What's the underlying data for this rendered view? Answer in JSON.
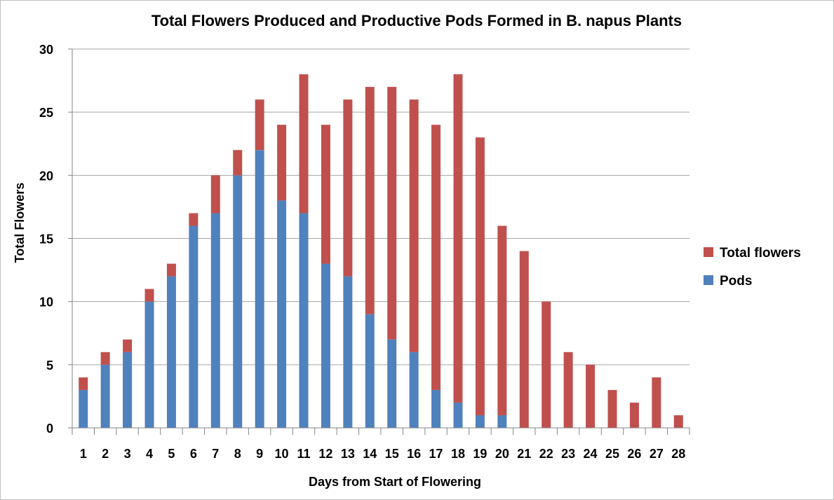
{
  "chart_data": {
    "type": "bar",
    "stacked": true,
    "title": "Total Flowers Produced and Productive Pods Formed in B. napus Plants",
    "xlabel": "Days from Start of Flowering",
    "ylabel": "Total Flowers",
    "ylim": [
      0,
      30
    ],
    "yticks": [
      0,
      5,
      10,
      15,
      20,
      25,
      30
    ],
    "grid": true,
    "legend_position": "right",
    "categories": [
      "1",
      "2",
      "3",
      "4",
      "5",
      "6",
      "7",
      "8",
      "9",
      "10",
      "11",
      "12",
      "13",
      "14",
      "15",
      "16",
      "17",
      "18",
      "19",
      "20",
      "21",
      "22",
      "23",
      "24",
      "25",
      "26",
      "27",
      "28"
    ],
    "total_flowers": [
      4,
      6,
      7,
      11,
      13,
      17,
      20,
      22,
      26,
      24,
      28,
      24,
      26,
      27,
      27,
      26,
      24,
      28,
      23,
      16,
      14,
      10,
      6,
      5,
      3,
      2,
      4,
      1
    ],
    "series": [
      {
        "name": "Pods",
        "color": "#4f81bd",
        "values": [
          3,
          5,
          6,
          10,
          12,
          16,
          17,
          20,
          22,
          18,
          17,
          13,
          12,
          9,
          7,
          6,
          3,
          2,
          1,
          1,
          0,
          0,
          0,
          0,
          0,
          0,
          0,
          0
        ]
      },
      {
        "name": "Total flowers",
        "color": "#c0504d",
        "values": [
          1,
          1,
          1,
          1,
          1,
          1,
          3,
          2,
          4,
          6,
          11,
          11,
          14,
          18,
          20,
          20,
          21,
          26,
          22,
          15,
          14,
          10,
          6,
          5,
          3,
          2,
          4,
          1
        ]
      }
    ],
    "legend": [
      {
        "label": "Total flowers",
        "color": "#c0504d"
      },
      {
        "label": "Pods",
        "color": "#4f81bd"
      }
    ]
  }
}
